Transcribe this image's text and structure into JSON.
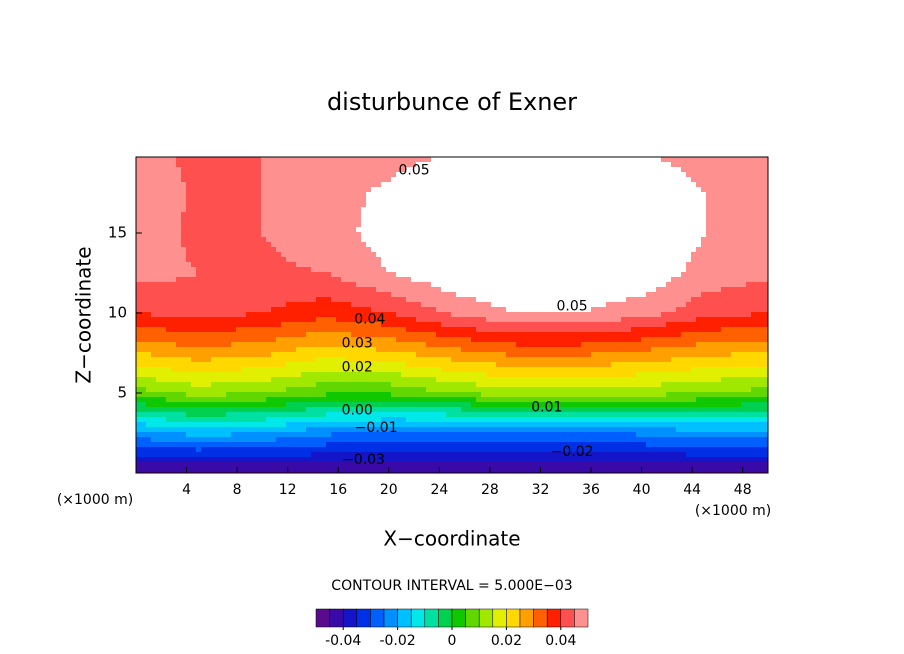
{
  "chart_data": {
    "type": "contour",
    "title": "disturbunce of Exner",
    "x_label": "X−coordinate",
    "y_label": "Z−coordinate",
    "x_unit": "(×1000 m)",
    "y_unit": "(×1000 m)",
    "xlim": [
      0,
      50
    ],
    "ylim": [
      0,
      19.75
    ],
    "xticks": [
      4,
      8,
      12,
      16,
      20,
      24,
      28,
      32,
      36,
      40,
      44,
      48
    ],
    "yticks": [
      5,
      10,
      15
    ],
    "x": [
      0,
      5,
      10,
      15,
      20,
      25,
      30,
      35,
      40,
      45,
      50
    ],
    "z": [
      0,
      2.5,
      5,
      7.5,
      10,
      12.5,
      15,
      17.5,
      20
    ],
    "values": [
      [
        -0.045,
        -0.047,
        -0.046,
        -0.045,
        -0.045,
        -0.045,
        -0.045,
        -0.045,
        -0.045,
        -0.046,
        -0.046
      ],
      [
        -0.022,
        -0.018,
        -0.02,
        -0.024,
        -0.026,
        -0.027,
        -0.027,
        -0.026,
        -0.024,
        -0.022,
        -0.022
      ],
      [
        0.008,
        0.012,
        0.01,
        0.006,
        0.006,
        0.01,
        0.013,
        0.013,
        0.012,
        0.01,
        0.008
      ],
      [
        0.025,
        0.028,
        0.026,
        0.022,
        0.024,
        0.028,
        0.031,
        0.031,
        0.029,
        0.026,
        0.025
      ],
      [
        0.04,
        0.042,
        0.04,
        0.037,
        0.04,
        0.046,
        0.05,
        0.05,
        0.047,
        0.042,
        0.04
      ],
      [
        0.047,
        0.045,
        0.044,
        0.045,
        0.05,
        0.054,
        0.056,
        0.056,
        0.054,
        0.048,
        0.046
      ],
      [
        0.05,
        0.043,
        0.045,
        0.048,
        0.052,
        0.057,
        0.058,
        0.058,
        0.056,
        0.05,
        0.048
      ],
      [
        0.049,
        0.044,
        0.045,
        0.048,
        0.051,
        0.055,
        0.056,
        0.056,
        0.054,
        0.05,
        0.049
      ],
      [
        0.046,
        0.044,
        0.045,
        0.046,
        0.048,
        0.05,
        0.051,
        0.051,
        0.05,
        0.048,
        0.047
      ]
    ],
    "clim": [
      -0.05,
      0.05
    ],
    "colors": [
      "#5a0a8c",
      "#3a0aa8",
      "#1414c8",
      "#0030e6",
      "#0060ff",
      "#0090ff",
      "#00c0ff",
      "#00e8e8",
      "#00e0a0",
      "#00d050",
      "#10c800",
      "#60d800",
      "#a0e800",
      "#e0f000",
      "#ffd800",
      "#ffa000",
      "#ff6000",
      "#ff2000",
      "#ff5050",
      "#ff9090"
    ],
    "contour_interval": "CONTOUR INTERVAL = 5.000E−03",
    "colorbar_ticks": [
      -0.04,
      -0.02,
      0,
      0.02,
      0.04
    ],
    "contour_labels": [
      {
        "value": 0.05,
        "label": "0.05",
        "x": 22,
        "z": 18.9
      },
      {
        "value": 0.05,
        "label": "0.05",
        "x": 34.5,
        "z": 10.4
      },
      {
        "value": 0.04,
        "label": "0.04",
        "x": 18.5,
        "z": 9.6
      },
      {
        "value": 0.03,
        "label": "0.03",
        "x": 17.5,
        "z": 8.1
      },
      {
        "value": 0.02,
        "label": "0.02",
        "x": 17.5,
        "z": 6.6
      },
      {
        "value": 0.01,
        "label": "0.01",
        "x": 32.5,
        "z": 4.1
      },
      {
        "value": 0,
        "label": "0.00",
        "x": 17.5,
        "z": 3.9
      },
      {
        "value": -0.01,
        "label": "−0.01",
        "x": 19,
        "z": 2.8
      },
      {
        "value": -0.02,
        "label": "−0.02",
        "x": 34.5,
        "z": 1.3
      },
      {
        "value": -0.03,
        "label": "−0.03",
        "x": 18,
        "z": 0.8
      }
    ]
  }
}
